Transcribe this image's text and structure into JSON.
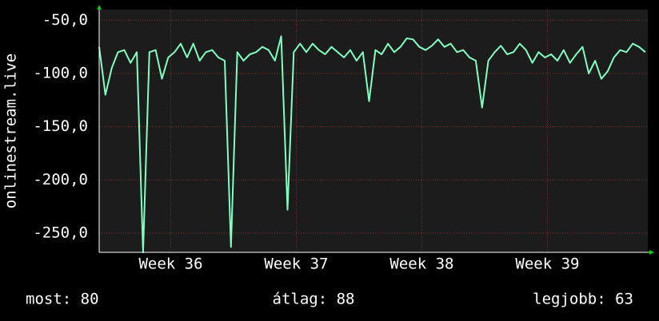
{
  "chart_data": {
    "type": "line",
    "y_label": "onlinestream.live",
    "x": [
      35.43,
      35.48,
      35.53,
      35.58,
      35.63,
      35.68,
      35.73,
      35.78,
      35.83,
      35.88,
      35.93,
      35.98,
      36.03,
      36.08,
      36.13,
      36.18,
      36.23,
      36.28,
      36.33,
      36.38,
      36.43,
      36.48,
      36.53,
      36.58,
      36.63,
      36.68,
      36.73,
      36.78,
      36.83,
      36.88,
      36.93,
      36.98,
      37.03,
      37.08,
      37.13,
      37.18,
      37.23,
      37.28,
      37.33,
      37.38,
      37.43,
      37.48,
      37.53,
      37.58,
      37.63,
      37.68,
      37.73,
      37.78,
      37.83,
      37.88,
      37.93,
      37.98,
      38.03,
      38.08,
      38.13,
      38.18,
      38.23,
      38.28,
      38.33,
      38.38,
      38.43,
      38.48,
      38.53,
      38.58,
      38.63,
      38.68,
      38.73,
      38.78,
      38.83,
      38.88,
      38.93,
      38.98,
      39.03,
      39.08,
      39.13,
      39.18,
      39.23,
      39.28,
      39.33,
      39.38,
      39.43,
      39.48,
      39.53,
      39.58,
      39.63,
      39.68,
      39.73,
      39.78
    ],
    "series": [
      {
        "name": "onlinestream.live",
        "color": "#80ffbf",
        "values": [
          -75,
          -120,
          -95,
          -80,
          -78,
          -90,
          -80,
          -268,
          -80,
          -78,
          -105,
          -85,
          -80,
          -72,
          -85,
          -72,
          -88,
          -80,
          -78,
          -85,
          -88,
          -263,
          -80,
          -88,
          -82,
          -80,
          -75,
          -78,
          -88,
          -65,
          -228,
          -80,
          -72,
          -80,
          -72,
          -78,
          -82,
          -75,
          -80,
          -85,
          -78,
          -88,
          -80,
          -126,
          -78,
          -82,
          -72,
          -80,
          -75,
          -67,
          -68,
          -75,
          -78,
          -74,
          -68,
          -75,
          -72,
          -80,
          -78,
          -85,
          -88,
          -132,
          -88,
          -80,
          -74,
          -82,
          -80,
          -72,
          -78,
          -90,
          -80,
          -85,
          -82,
          -88,
          -78,
          -90,
          -82,
          -75,
          -100,
          -88,
          -105,
          -98,
          -85,
          -78,
          -80,
          -72,
          -75,
          -80
        ]
      }
    ],
    "xlim": [
      35.43,
      39.8
    ],
    "xticks": [
      {
        "value": 36,
        "label": "Week 36"
      },
      {
        "value": 37,
        "label": "Week 37"
      },
      {
        "value": 38,
        "label": "Week 38"
      },
      {
        "value": 39,
        "label": "Week 39"
      }
    ],
    "ylim": [
      -268,
      -40
    ],
    "yticks": [
      {
        "value": -50,
        "label": "-50,0"
      },
      {
        "value": -100,
        "label": "-100,0"
      },
      {
        "value": -150,
        "label": "-150,0"
      },
      {
        "value": -200,
        "label": "-200,0"
      },
      {
        "value": -250,
        "label": "-250,0"
      }
    ],
    "grid": true,
    "footer": [
      "most: 80",
      "átlag: 88",
      "legjobb: 63"
    ]
  }
}
